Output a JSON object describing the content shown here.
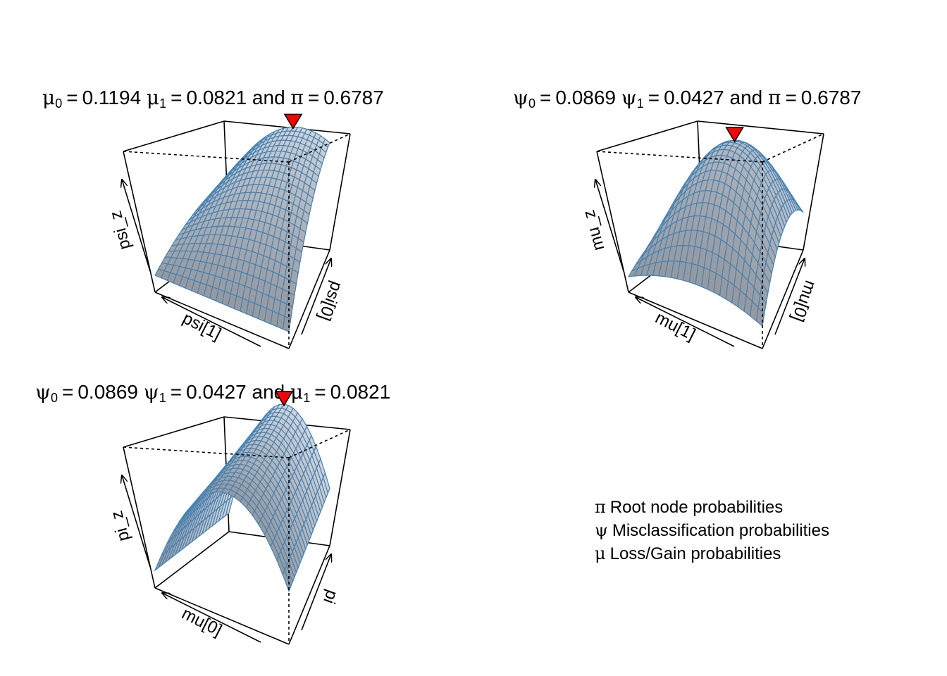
{
  "chart_data": [
    {
      "type": "surface",
      "title": {
        "a_sym": "μ",
        "a_sub": "0",
        "a_val": "0.1194",
        "b_sym": "μ",
        "b_sub": "1",
        "b_val": "0.0821",
        "joiner": "and",
        "c_sym": "π",
        "c_val": "0.6787"
      },
      "xlabel": "psi[1]",
      "ylabel": "psi[0]",
      "zlabel": "psi_z",
      "surface_color": "#4682B4",
      "shape": "ridge-rising-to-back-corner",
      "maximum_marker": {
        "shape": "down-triangle",
        "color": "#FF0000"
      }
    },
    {
      "type": "surface",
      "title": {
        "a_sym": "ψ",
        "a_sub": "0",
        "a_val": "0.0869",
        "b_sym": "ψ",
        "b_sub": "1",
        "b_val": "0.0427",
        "joiner": "and",
        "c_sym": "π",
        "c_val": "0.6787"
      },
      "xlabel": "mu[1]",
      "ylabel": "mu[0]",
      "zlabel": "mu_z",
      "surface_color": "#4682B4",
      "shape": "dome",
      "maximum_marker": {
        "shape": "down-triangle",
        "color": "#FF0000"
      }
    },
    {
      "type": "surface",
      "title": {
        "a_sym": "ψ",
        "a_sub": "0",
        "a_val": "0.0869",
        "b_sym": "ψ",
        "b_sub": "1",
        "b_val": "0.0427",
        "joiner": "and",
        "c_sym": "μ",
        "c_sub": "1",
        "c_val": "0.0821"
      },
      "xlabel": "mu[0]",
      "ylabel": "pi",
      "zlabel": "pi_z",
      "surface_color": "#4682B4",
      "shape": "arch",
      "maximum_marker": {
        "shape": "down-triangle",
        "color": "#FF0000"
      }
    }
  ],
  "legend": [
    {
      "symbol": "π",
      "text": "Root node probabilities"
    },
    {
      "symbol": "ψ",
      "text": "Misclassification probabilities"
    },
    {
      "symbol": "μ",
      "text": "Loss/Gain probabilities"
    }
  ]
}
